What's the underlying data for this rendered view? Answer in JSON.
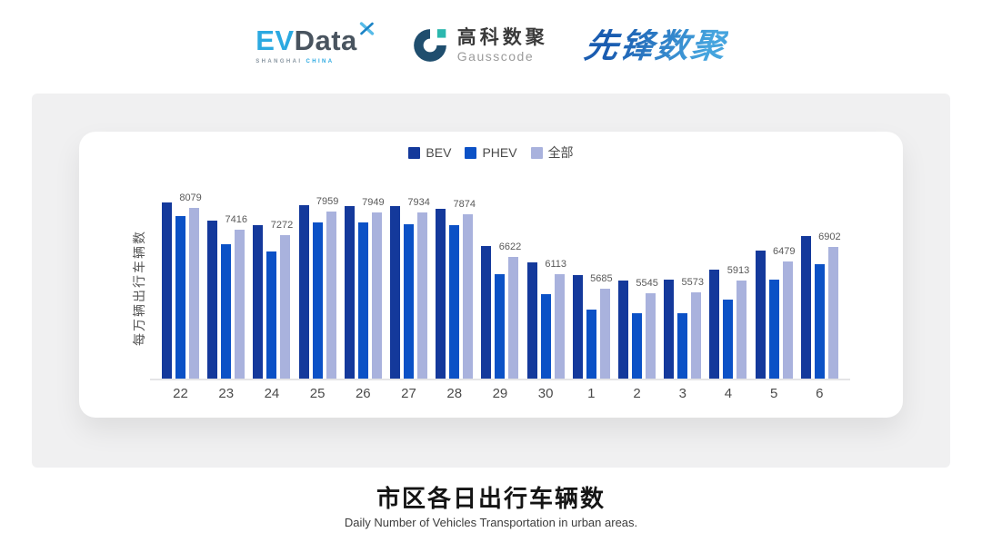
{
  "header": {
    "evdata": {
      "ev": "EV",
      "data": "Data",
      "sub_left": "SHANGHAI",
      "sub_right": "CHINA"
    },
    "gausscode": {
      "cn": "高科数聚",
      "en": "Gausscode"
    },
    "pioneer": {
      "text": "先锋数聚"
    }
  },
  "colors": {
    "bev": "#14399b",
    "phev": "#0b51c6",
    "all": "#a9b2dd",
    "evdata-blue": "#2ba9e1",
    "evdata-dark": "#49545f",
    "gauss-dark": "#1f4e6e",
    "gauss-teal": "#2cb7ae",
    "pioneer-from": "#1a5cb0",
    "pioneer-to": "#45a4de",
    "panel-bg": "#f0f0f1"
  },
  "chart_data": {
    "type": "bar",
    "title": "市区各日出行车辆数",
    "subtitle": "Daily Number of Vehicles Transportation in urban areas.",
    "ylabel": "每万辆出行车辆数",
    "xlabel": "",
    "categories": [
      "22",
      "23",
      "24",
      "25",
      "26",
      "27",
      "28",
      "29",
      "30",
      "1",
      "2",
      "3",
      "4",
      "5",
      "6"
    ],
    "series": [
      {
        "name": "BEV",
        "color": "#14399b",
        "values": [
          8230,
          7690,
          7570,
          8160,
          8140,
          8130,
          8050,
          6950,
          6450,
          6090,
          5910,
          5950,
          6240,
          6810,
          7230
        ]
      },
      {
        "name": "PHEV",
        "color": "#0b51c6",
        "values": [
          7840,
          6990,
          6780,
          7650,
          7640,
          7600,
          7570,
          6110,
          5520,
          5060,
          4950,
          4940,
          5350,
          5940,
          6390
        ]
      },
      {
        "name": "全部",
        "color": "#a9b2dd",
        "data_labels": true,
        "values": [
          8079,
          7416,
          7272,
          7959,
          7949,
          7934,
          7874,
          6622,
          6113,
          5685,
          5545,
          5573,
          5913,
          6479,
          6902
        ]
      }
    ],
    "ylim": [
      3000,
      8400
    ],
    "grid": false,
    "legend_position": "top"
  },
  "footer": {
    "title": "市区各日出行车辆数",
    "subtitle": "Daily Number of Vehicles Transportation in urban areas."
  }
}
